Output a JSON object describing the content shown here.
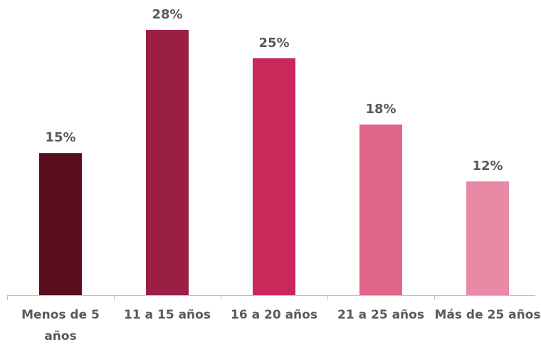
{
  "chart_data": {
    "type": "bar",
    "categories": [
      "Menos de 5 años",
      "11 a 15 años",
      "16 a 20 años",
      "21 a 25 años",
      "Más de 25 años"
    ],
    "values": [
      15,
      28,
      25,
      18,
      12
    ],
    "value_labels": [
      "15%",
      "28%",
      "25%",
      "18%",
      "12%"
    ],
    "colors": [
      "#5a0f1e",
      "#9b1f45",
      "#c8295a",
      "#e0668a",
      "#e88aa5"
    ]
  }
}
